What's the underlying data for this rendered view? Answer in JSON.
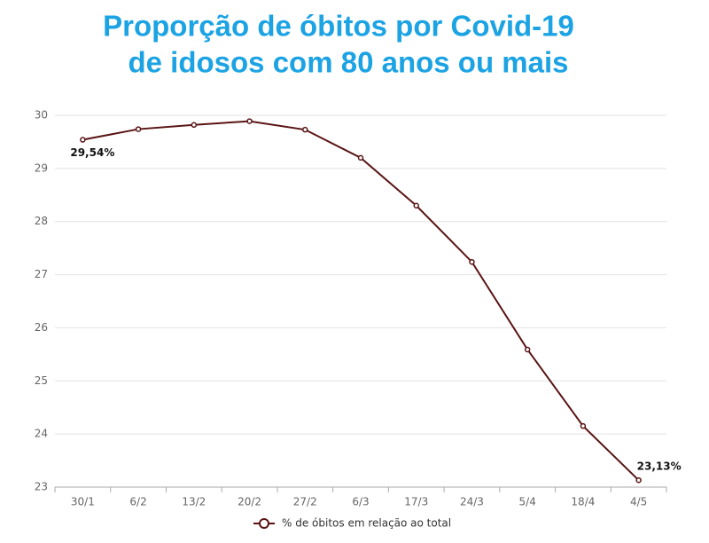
{
  "chart_data": {
    "type": "line",
    "title": [
      "Proporção de óbitos por Covid-19",
      "de idosos com 80 anos ou mais"
    ],
    "categories": [
      "30/1",
      "6/2",
      "13/2",
      "20/2",
      "27/2",
      "6/3",
      "17/3",
      "24/3",
      "5/4",
      "18/4",
      "4/5"
    ],
    "series": [
      {
        "name": "% de óbitos em relação ao total",
        "color": "#5a1414",
        "values": [
          29.54,
          29.74,
          29.82,
          29.89,
          29.73,
          29.2,
          28.3,
          27.24,
          25.59,
          24.15,
          23.13
        ],
        "value_labels": [
          "29,54%",
          null,
          null,
          null,
          null,
          null,
          null,
          null,
          null,
          null,
          "23,13%"
        ]
      }
    ],
    "ylim": [
      23,
      30
    ],
    "yticks": [
      23,
      24,
      25,
      26,
      27,
      28,
      29,
      30
    ],
    "grid": true
  }
}
